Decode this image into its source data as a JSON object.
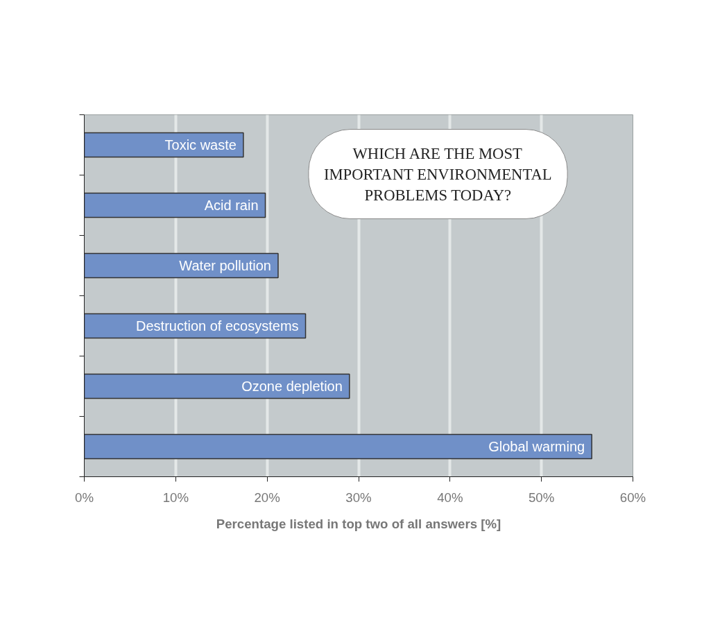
{
  "chart_data": {
    "type": "bar",
    "orientation": "horizontal",
    "xlabel": "Percentage listed in top two of all answers [%]",
    "categories": [
      "Toxic waste",
      "Acid rain",
      "Water pollution",
      "Destruction of ecosystems",
      "Ozone depletion",
      "Global warming"
    ],
    "values": [
      17.4,
      19.8,
      21.2,
      24.2,
      29.0,
      55.5
    ],
    "color": "#7090c8",
    "xlim": [
      0,
      60
    ],
    "xticks": [
      {
        "value": 0,
        "label": "0%"
      },
      {
        "value": 10,
        "label": "10%"
      },
      {
        "value": 20,
        "label": "20%"
      },
      {
        "value": 30,
        "label": "30%"
      },
      {
        "value": 40,
        "label": "40%"
      },
      {
        "value": 50,
        "label": "50%"
      },
      {
        "value": 60,
        "label": "60%"
      }
    ],
    "grid": "x",
    "tick_labels": "x",
    "annotations": [
      "WHICH ARE THE MOST\nIMPORTANT ENVIRONMENTAL\nPROBLEMS TODAY?"
    ]
  }
}
